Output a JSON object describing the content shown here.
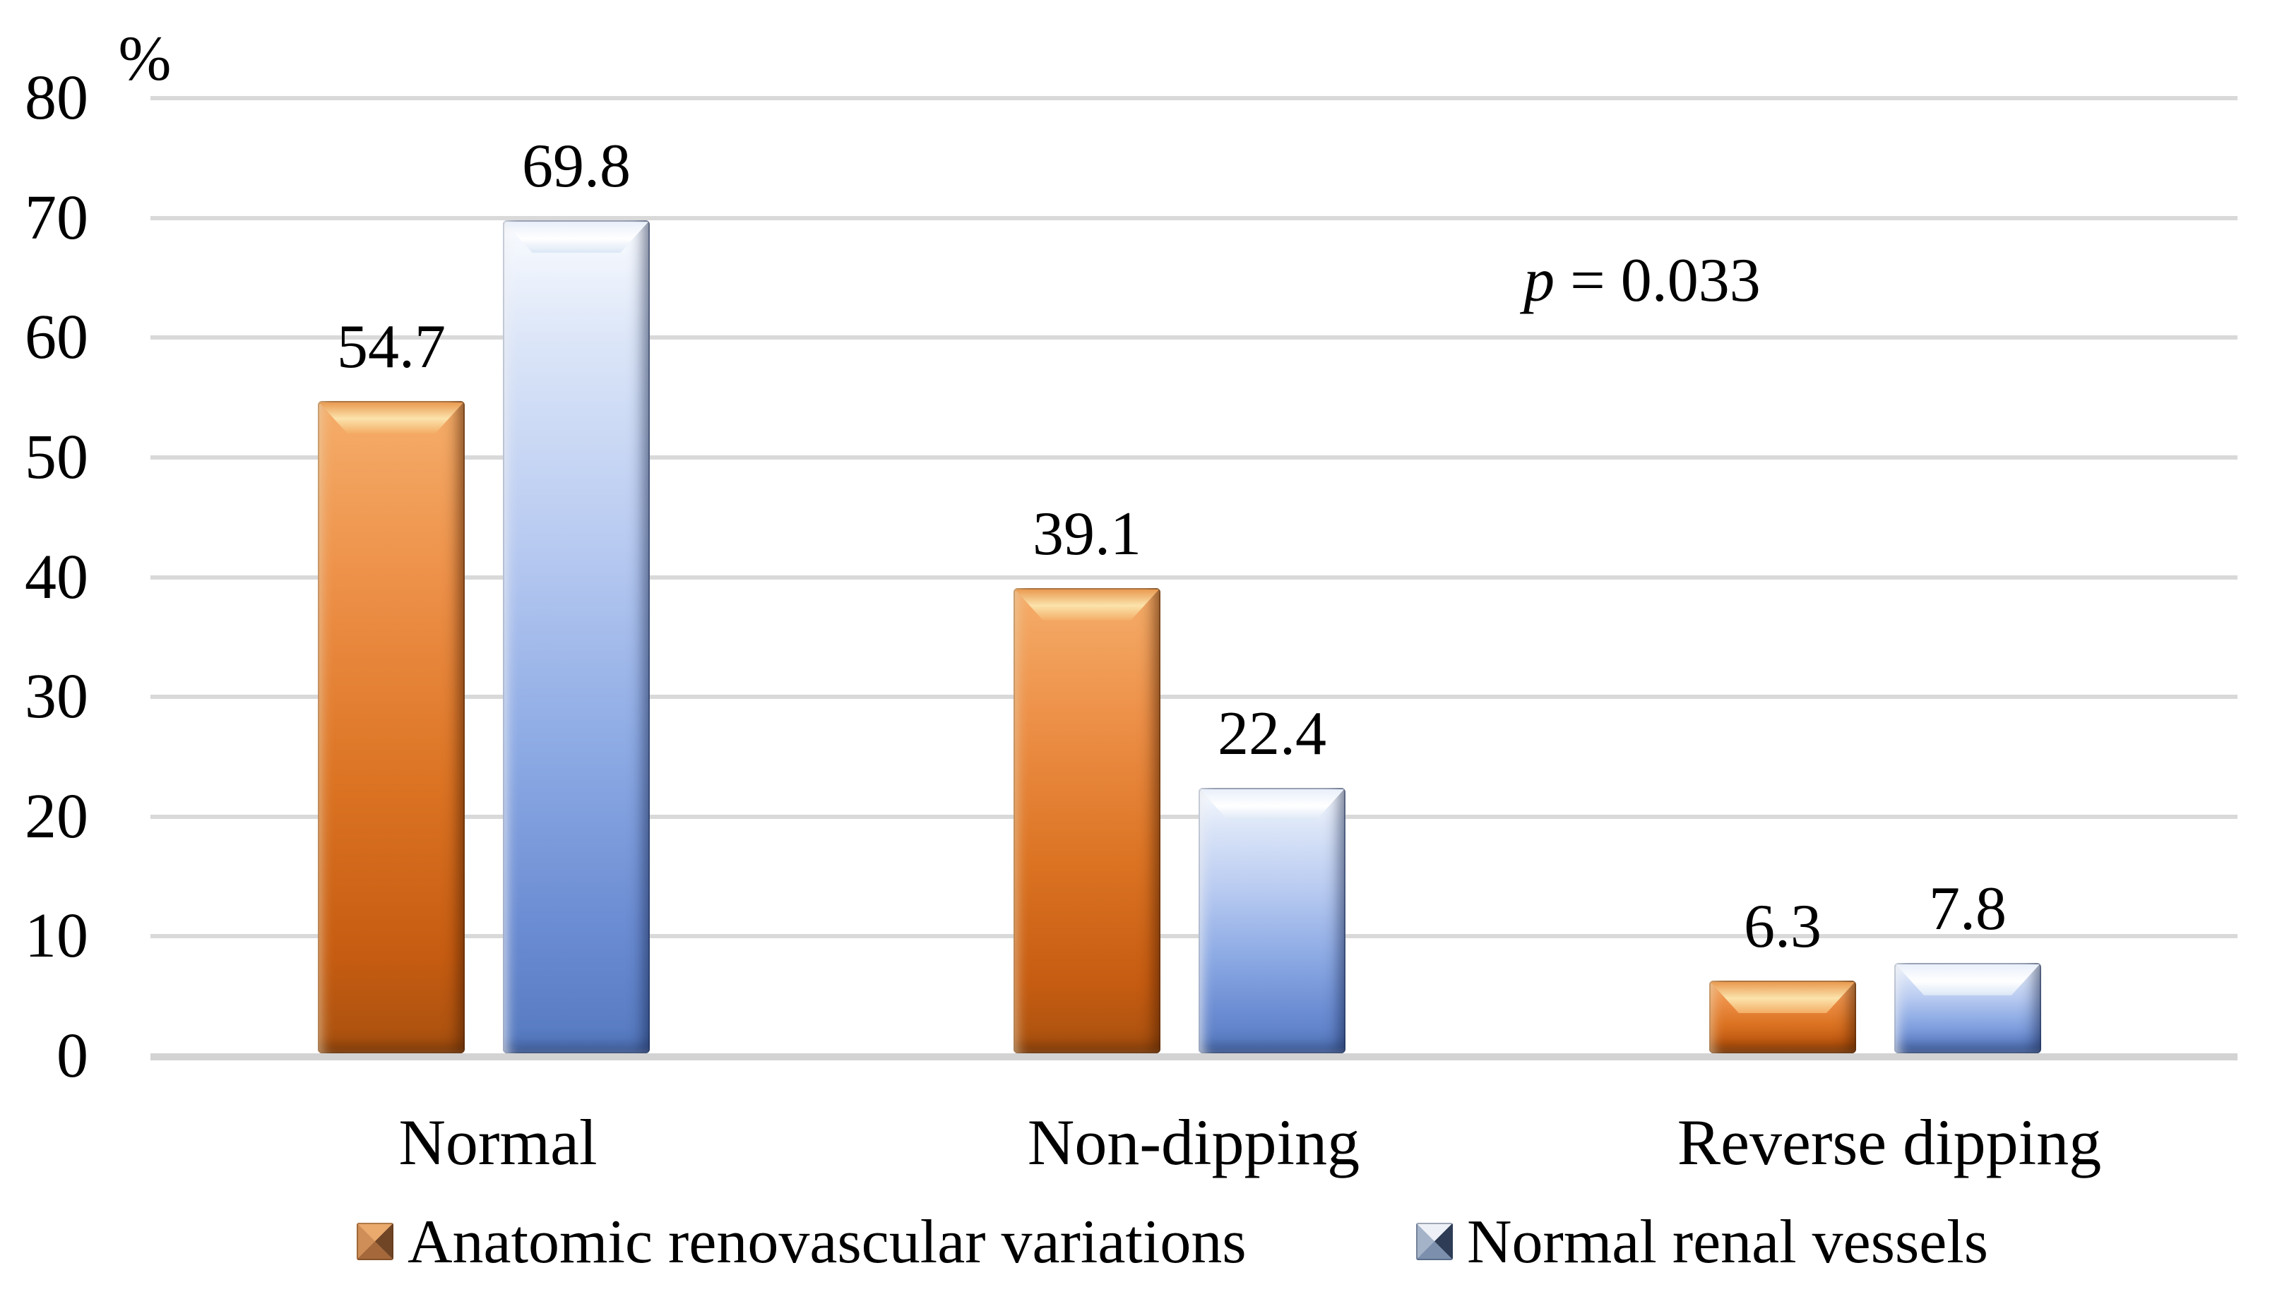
{
  "chart_data": {
    "type": "bar",
    "title": "",
    "unit_label": "%",
    "categories": [
      "Normal",
      "Non-dipping",
      "Reverse dipping"
    ],
    "series": [
      {
        "name": "Anatomic renovascular variations",
        "color": "#d2691b",
        "values": [
          54.7,
          39.1,
          6.3
        ]
      },
      {
        "name": "Normal renal vessels",
        "color": "#7d9bd8",
        "values": [
          69.8,
          22.4,
          7.8
        ]
      }
    ],
    "data_labels": [
      [
        "54.7",
        "39.1",
        "6.3"
      ],
      [
        "69.8",
        "22.4",
        "7.8"
      ]
    ],
    "ylim": [
      0,
      80
    ],
    "ytick_step": 10,
    "yticks": [
      "0",
      "10",
      "20",
      "30",
      "40",
      "50",
      "60",
      "70",
      "80"
    ],
    "grid": true,
    "gridline_color": "#d9d9d9",
    "legend_position": "bottom",
    "annotation": {
      "symbol": "p",
      "rest": " = 0.033"
    }
  }
}
